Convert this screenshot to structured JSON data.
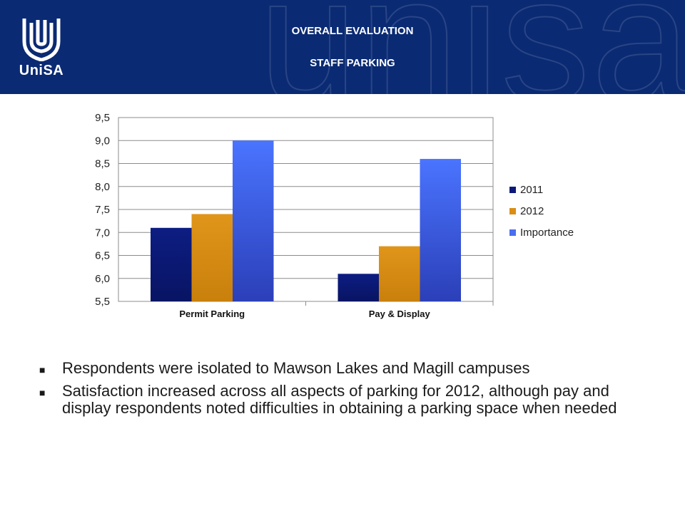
{
  "header": {
    "logo_text": "UniSA",
    "watermark": "unisa",
    "title": "OVERALL EVALUATION",
    "subtitle": "STAFF PARKING"
  },
  "chart_data": {
    "type": "bar",
    "categories": [
      "Permit Parking",
      "Pay & Display"
    ],
    "series": [
      {
        "name": "2011",
        "values": [
          7.1,
          6.1
        ],
        "color": "#0b1a78"
      },
      {
        "name": "2012",
        "values": [
          7.4,
          6.7
        ],
        "color": "#d98e14"
      },
      {
        "name": "Importance",
        "values": [
          9.0,
          8.6
        ],
        "color": "#4a6ef0"
      }
    ],
    "ylim": [
      5.5,
      9.5
    ],
    "yticks": [
      "5,5",
      "6,0",
      "6,5",
      "7,0",
      "7,5",
      "8,0",
      "8,5",
      "9,0",
      "9,5"
    ],
    "grid": true,
    "legend": "right"
  },
  "bullets": [
    "Respondents were isolated to Mawson Lakes and Magill campuses",
    "Satisfaction increased across all aspects of parking for 2012, although pay and display respondents noted difficulties in obtaining a parking space when needed"
  ]
}
